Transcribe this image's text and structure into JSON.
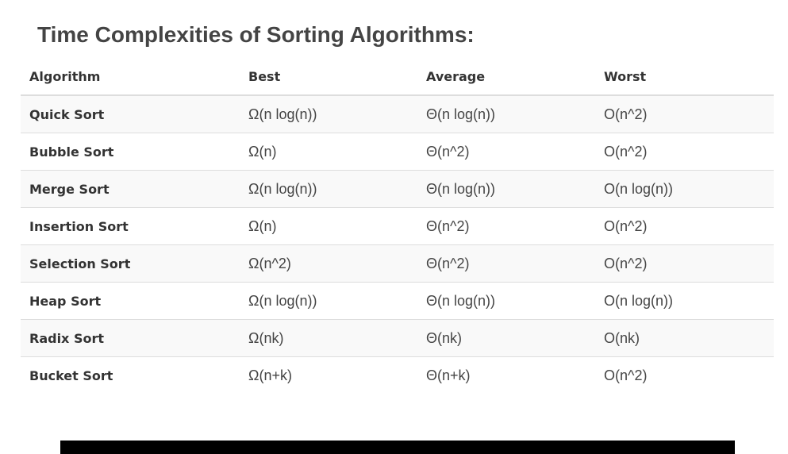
{
  "title": "Time Complexities of Sorting Algorithms:",
  "table": {
    "headers": [
      "Algorithm",
      "Best",
      "Average",
      "Worst"
    ],
    "rows": [
      [
        "Quick Sort",
        "Ω(n log(n))",
        "Θ(n log(n))",
        "O(n^2)"
      ],
      [
        "Bubble Sort",
        "Ω(n)",
        "Θ(n^2)",
        "O(n^2)"
      ],
      [
        "Merge Sort",
        "Ω(n log(n))",
        "Θ(n log(n))",
        "O(n log(n))"
      ],
      [
        "Insertion Sort",
        "Ω(n)",
        "Θ(n^2)",
        "O(n^2)"
      ],
      [
        "Selection Sort",
        "Ω(n^2)",
        "Θ(n^2)",
        "O(n^2)"
      ],
      [
        "Heap Sort",
        "Ω(n log(n))",
        "Θ(n log(n))",
        "O(n log(n))"
      ],
      [
        "Radix Sort",
        "Ω(nk)",
        "Θ(nk)",
        "O(nk)"
      ],
      [
        "Bucket Sort",
        "Ω(n+k)",
        "Θ(n+k)",
        "O(n^2)"
      ]
    ]
  },
  "colors": {
    "title": "#444444",
    "row_stripe": "#f9f9f9",
    "border": "#dddddd",
    "bottom_bar": "#000000"
  }
}
